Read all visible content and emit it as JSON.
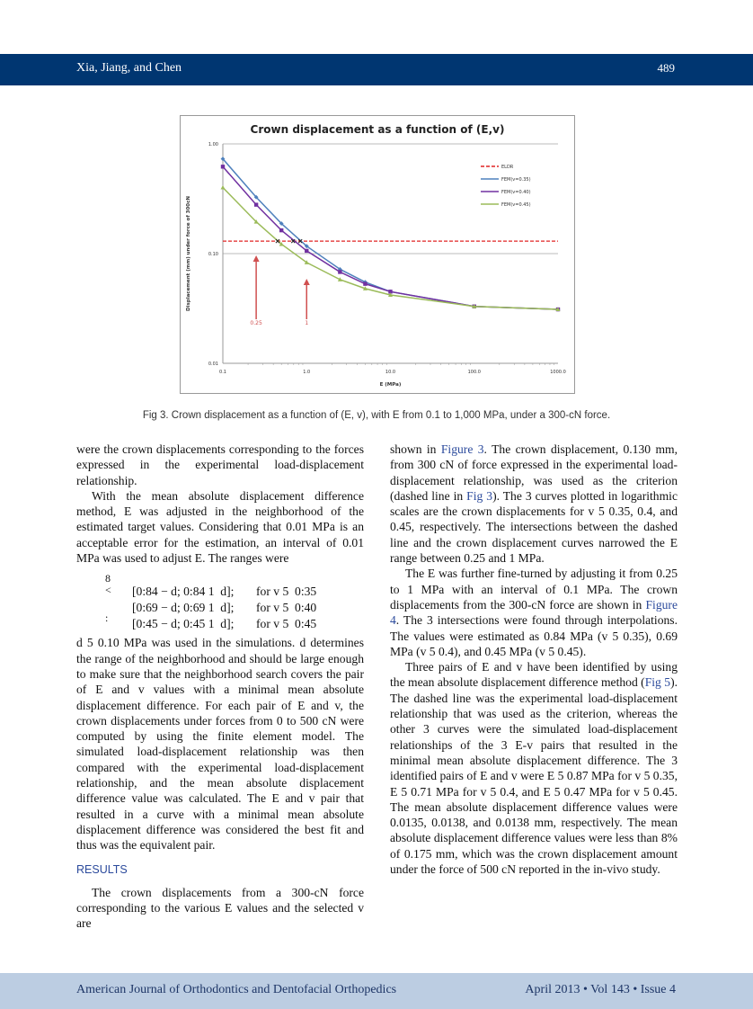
{
  "header": {
    "authors": "Xia, Jiang, and Chen",
    "page_number": "489"
  },
  "figure": {
    "caption": "Fig 3. Crown displacement as a function of (E, v), with E from 0.1 to 1,000 MPa, under a 300-cN force."
  },
  "chart_data": {
    "type": "line",
    "title": "Crown displacement as a function of (E,v)",
    "xlabel": "E (MPa)",
    "ylabel": "Displacement (mm) under force of 300cN",
    "x_scale": "log",
    "y_scale": "log",
    "xlim": [
      0.1,
      1000
    ],
    "ylim": [
      0.01,
      1
    ],
    "x_ticks": [
      "0.1",
      "1.0",
      "10.0",
      "100.0",
      "1000.0"
    ],
    "y_ticks": [
      "0.01",
      "0.10",
      "1.00"
    ],
    "grid": "horizontal major lines",
    "legend_position": "top-right",
    "x": [
      0.1,
      0.25,
      0.5,
      1,
      2.5,
      5,
      10,
      100,
      1000
    ],
    "series": [
      {
        "name": "ELDR",
        "style": "dashed",
        "color": "#e02424",
        "values": [
          0.13,
          0.13,
          0.13,
          0.13,
          0.13,
          0.13,
          0.13,
          0.13,
          0.13
        ]
      },
      {
        "name": "FEM(v=0.35)",
        "color": "#4f81bd",
        "marker": "diamond",
        "values": [
          0.73,
          0.327,
          0.188,
          0.117,
          0.072,
          0.055,
          0.045,
          0.033,
          0.031
        ]
      },
      {
        "name": "FEM(v=0.40)",
        "color": "#7030a0",
        "marker": "square",
        "values": [
          0.62,
          0.279,
          0.163,
          0.106,
          0.068,
          0.053,
          0.045,
          0.033,
          0.031
        ]
      },
      {
        "name": "FEM(v=0.45)",
        "color": "#9bbb59",
        "marker": "triangle",
        "values": [
          0.4,
          0.195,
          0.122,
          0.083,
          0.058,
          0.048,
          0.042,
          0.033,
          0.031
        ]
      }
    ],
    "intersections_E": [
      0.45,
      0.69,
      0.84
    ],
    "annotations": [
      {
        "label": "0.25",
        "x": 0.25,
        "color": "#d05050"
      },
      {
        "label": "1",
        "x": 1,
        "color": "#d05050"
      }
    ]
  },
  "left_column": {
    "p1": "were the crown displacements corresponding to the forces expressed in the experimental load-displacement relationship.",
    "p2": "With the mean absolute displacement difference method, E was adjusted in the neighborhood of the estimated target values. Considering that 0.01 MPa is an acceptable error for the estimation, an interval of 0.01 MPa was used to adjust E. The ranges were",
    "equation": {
      "brace_top": "8",
      "brace_mid": "<",
      "brace_bot": ":",
      "rows": [
        {
          "range": "[0:84 − d; 0:84 1  d];",
          "cond": "for v 5  0:35"
        },
        {
          "range": "[0:69 − d; 0:69 1  d];",
          "cond": "for v 5  0:40"
        },
        {
          "range": "[0:45 − d; 0:45 1  d];",
          "cond": "for v 5  0:45"
        }
      ]
    },
    "p3": "d 5  0.10 MPa was used in the simulations. d determines the range of the neighborhood and should be large enough to make sure that the neighborhood search covers the pair of E and v values with a minimal mean absolute displacement difference. For each pair of E and v, the crown displacements under forces from 0 to 500 cN were computed by using the finite element model. The simulated load-displacement relationship was then compared with the experimental load-displacement relationship, and the mean absolute displacement difference value was calculated. The E and v pair that resulted in a curve with a minimal mean absolute displacement difference was considered the best fit and thus was the equivalent pair.",
    "heading": "RESULTS",
    "p4": "The crown displacements from a 300-cN force corresponding to the various E values and the selected v are"
  },
  "right_column": {
    "paragraphs": [
      [
        {
          "t": "shown in "
        },
        {
          "t": "Figure 3",
          "link": true
        },
        {
          "t": ". The crown displacement, 0.130 mm, from 300 cN of force expressed in the experimental load-displacement relationship, was used as the criterion (dashed line in "
        },
        {
          "t": "Fig 3",
          "link": true
        },
        {
          "t": "). The 3 curves plotted in logarithmic scales are the crown displacements for v 5  0.35, 0.4, and 0.45, respectively. The intersections between the dashed line and the crown displacement curves narrowed the E range between 0.25 and 1 MPa."
        }
      ],
      [
        {
          "t": "The E was further fine-turned by adjusting it from 0.25 to 1 MPa with an interval of 0.1 MPa. The crown displacements from the 300-cN force are shown in "
        },
        {
          "t": "Figure 4",
          "link": true
        },
        {
          "t": ". The 3 intersections were found through interpolations. The values were estimated as 0.84 MPa (v 5  0.35), 0.69 MPa (v 5  0.4), and 0.45 MPa (v 5  0.45)."
        }
      ],
      [
        {
          "t": "Three pairs of E and v have been identified by using the mean absolute displacement difference method ("
        },
        {
          "t": "Fig 5",
          "link": true
        },
        {
          "t": "). The dashed line was the experimental load-displacement relationship that was used as the criterion, whereas the other 3 curves were the simulated load-displacement relationships of the 3 E-v pairs that resulted in the minimal mean absolute displacement difference. The 3 identified pairs of E and v were E 5  0.87 MPa for v 5  0.35, E 5  0.71 MPa for v 5  0.4, and E 5  0.47 MPa for v 5  0.45. The mean absolute displacement difference values were 0.0135, 0.0138, and 0.0138 mm, respectively. The mean absolute displacement difference values were less than 8% of 0.175 mm, which was the crown displacement amount under the force of 500 cN reported in the in-vivo study."
        }
      ]
    ]
  },
  "footer": {
    "journal": "American Journal of Orthodontics and Dentofacial Orthopedics",
    "issue": "April 2013 • Vol 143 • Issue 4"
  }
}
